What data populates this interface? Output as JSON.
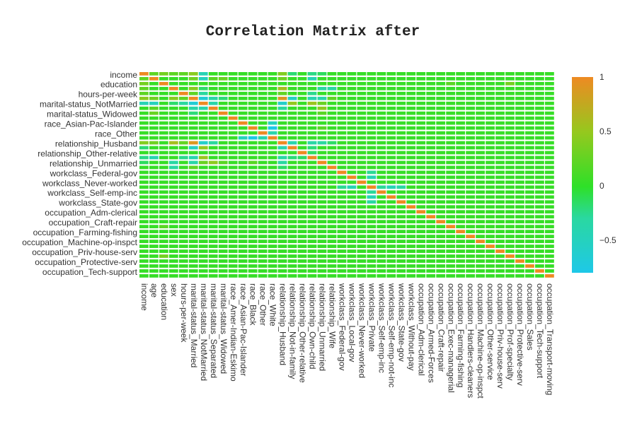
{
  "chart_data": {
    "type": "heatmap",
    "title": "Correlation Matrix after",
    "categories": [
      "income",
      "age",
      "education",
      "sex",
      "hours-per-week",
      "marital-status_Married",
      "marital-status_NotMarried",
      "marital-status_Separated",
      "marital-status_Widowed",
      "race_Amer-Indian-Eskimo",
      "race_Asian-Pac-Islander",
      "race_Black",
      "race_Other",
      "race_White",
      "relationship_Husband",
      "relationship_Not-in-family",
      "relationship_Other-relative",
      "relationship_Own-child",
      "relationship_Unmarried",
      "relationship_Wife",
      "workclass_Federal-gov",
      "workclass_Local-gov",
      "workclass_Never-worked",
      "workclass_Private",
      "workclass_Self-emp-inc",
      "workclass_Self-emp-not-inc",
      "workclass_State-gov",
      "workclass_Without-pay",
      "occupation_Adm-clerical",
      "occupation_Armed-Forces",
      "occupation_Craft-repair",
      "occupation_Exec-managerial",
      "occupation_Farming-fishing",
      "occupation_Handlers-cleaners",
      "occupation_Machine-op-inspct",
      "occupation_Other-service",
      "occupation_Priv-house-serv",
      "occupation_Prof-specialty",
      "occupation_Protective-serv",
      "occupation_Sales",
      "occupation_Tech-support",
      "occupation_Transport-moving"
    ],
    "y_tick_labels": [
      "income",
      "education",
      "hours-per-week",
      "marital-status_NotMarried",
      "marital-status_Widowed",
      "race_Asian-Pac-Islander",
      "race_Other",
      "relationship_Husband",
      "relationship_Other-relative",
      "relationship_Unmarried",
      "workclass_Federal-gov",
      "workclass_Never-worked",
      "workclass_Self-emp-inc",
      "workclass_State-gov",
      "occupation_Adm-clerical",
      "occupation_Craft-repair",
      "occupation_Farming-fishing",
      "occupation_Machine-op-inspct",
      "occupation_Priv-house-serv",
      "occupation_Protective-serv",
      "occupation_Tech-support"
    ],
    "y_order": "top-to-bottom",
    "colorscale": [
      "#1ec8e8",
      "#2ad8a0",
      "#2ee028",
      "#96c81e",
      "#ee8a22"
    ],
    "zmin": -0.8,
    "zmax": 1,
    "colorbar_ticks": [
      1,
      0.5,
      0,
      -0.5
    ],
    "colorbar_tick_labels": [
      "1",
      "0.5",
      "0",
      "−0.5"
    ],
    "diagonal": 1,
    "notable_correlations": [
      [
        0,
        1,
        0.23
      ],
      [
        0,
        2,
        0.33
      ],
      [
        0,
        3,
        0.22
      ],
      [
        0,
        4,
        0.23
      ],
      [
        0,
        5,
        0.44
      ],
      [
        0,
        6,
        -0.44
      ],
      [
        0,
        14,
        0.4
      ],
      [
        0,
        15,
        -0.19
      ],
      [
        0,
        17,
        -0.23
      ],
      [
        0,
        18,
        -0.14
      ],
      [
        1,
        5,
        0.31
      ],
      [
        1,
        6,
        -0.5
      ],
      [
        1,
        7,
        0.2
      ],
      [
        1,
        8,
        0.27
      ],
      [
        1,
        14,
        0.3
      ],
      [
        1,
        17,
        -0.43
      ],
      [
        2,
        31,
        0.2
      ],
      [
        2,
        37,
        0.33
      ],
      [
        3,
        5,
        0.43
      ],
      [
        3,
        6,
        -0.17
      ],
      [
        3,
        14,
        0.58
      ],
      [
        3,
        18,
        -0.32
      ],
      [
        3,
        19,
        -0.32
      ],
      [
        4,
        5,
        0.23
      ],
      [
        4,
        6,
        -0.29
      ],
      [
        4,
        14,
        0.25
      ],
      [
        4,
        17,
        -0.25
      ],
      [
        5,
        6,
        -0.66
      ],
      [
        5,
        7,
        -0.35
      ],
      [
        5,
        8,
        -0.2
      ],
      [
        5,
        14,
        0.89
      ],
      [
        5,
        15,
        -0.54
      ],
      [
        5,
        17,
        -0.4
      ],
      [
        5,
        18,
        -0.35
      ],
      [
        5,
        19,
        0.23
      ],
      [
        6,
        7,
        -0.36
      ],
      [
        6,
        14,
        -0.59
      ],
      [
        6,
        15,
        0.48
      ],
      [
        6,
        17,
        0.52
      ],
      [
        6,
        18,
        0.28
      ],
      [
        7,
        14,
        -0.29
      ],
      [
        7,
        18,
        0.45
      ],
      [
        8,
        18,
        0.2
      ],
      [
        10,
        13,
        -0.49
      ],
      [
        11,
        13,
        -0.79
      ],
      [
        12,
        13,
        -0.39
      ],
      [
        11,
        18,
        0.19
      ],
      [
        14,
        15,
        -0.4
      ],
      [
        14,
        17,
        -0.34
      ],
      [
        14,
        18,
        -0.3
      ],
      [
        14,
        19,
        -0.16
      ],
      [
        15,
        17,
        -0.2
      ],
      [
        16,
        17,
        -0.15
      ],
      [
        20,
        23,
        -0.27
      ],
      [
        21,
        23,
        -0.45
      ],
      [
        24,
        23,
        -0.28
      ],
      [
        25,
        23,
        -0.46
      ],
      [
        26,
        23,
        -0.33
      ]
    ]
  }
}
